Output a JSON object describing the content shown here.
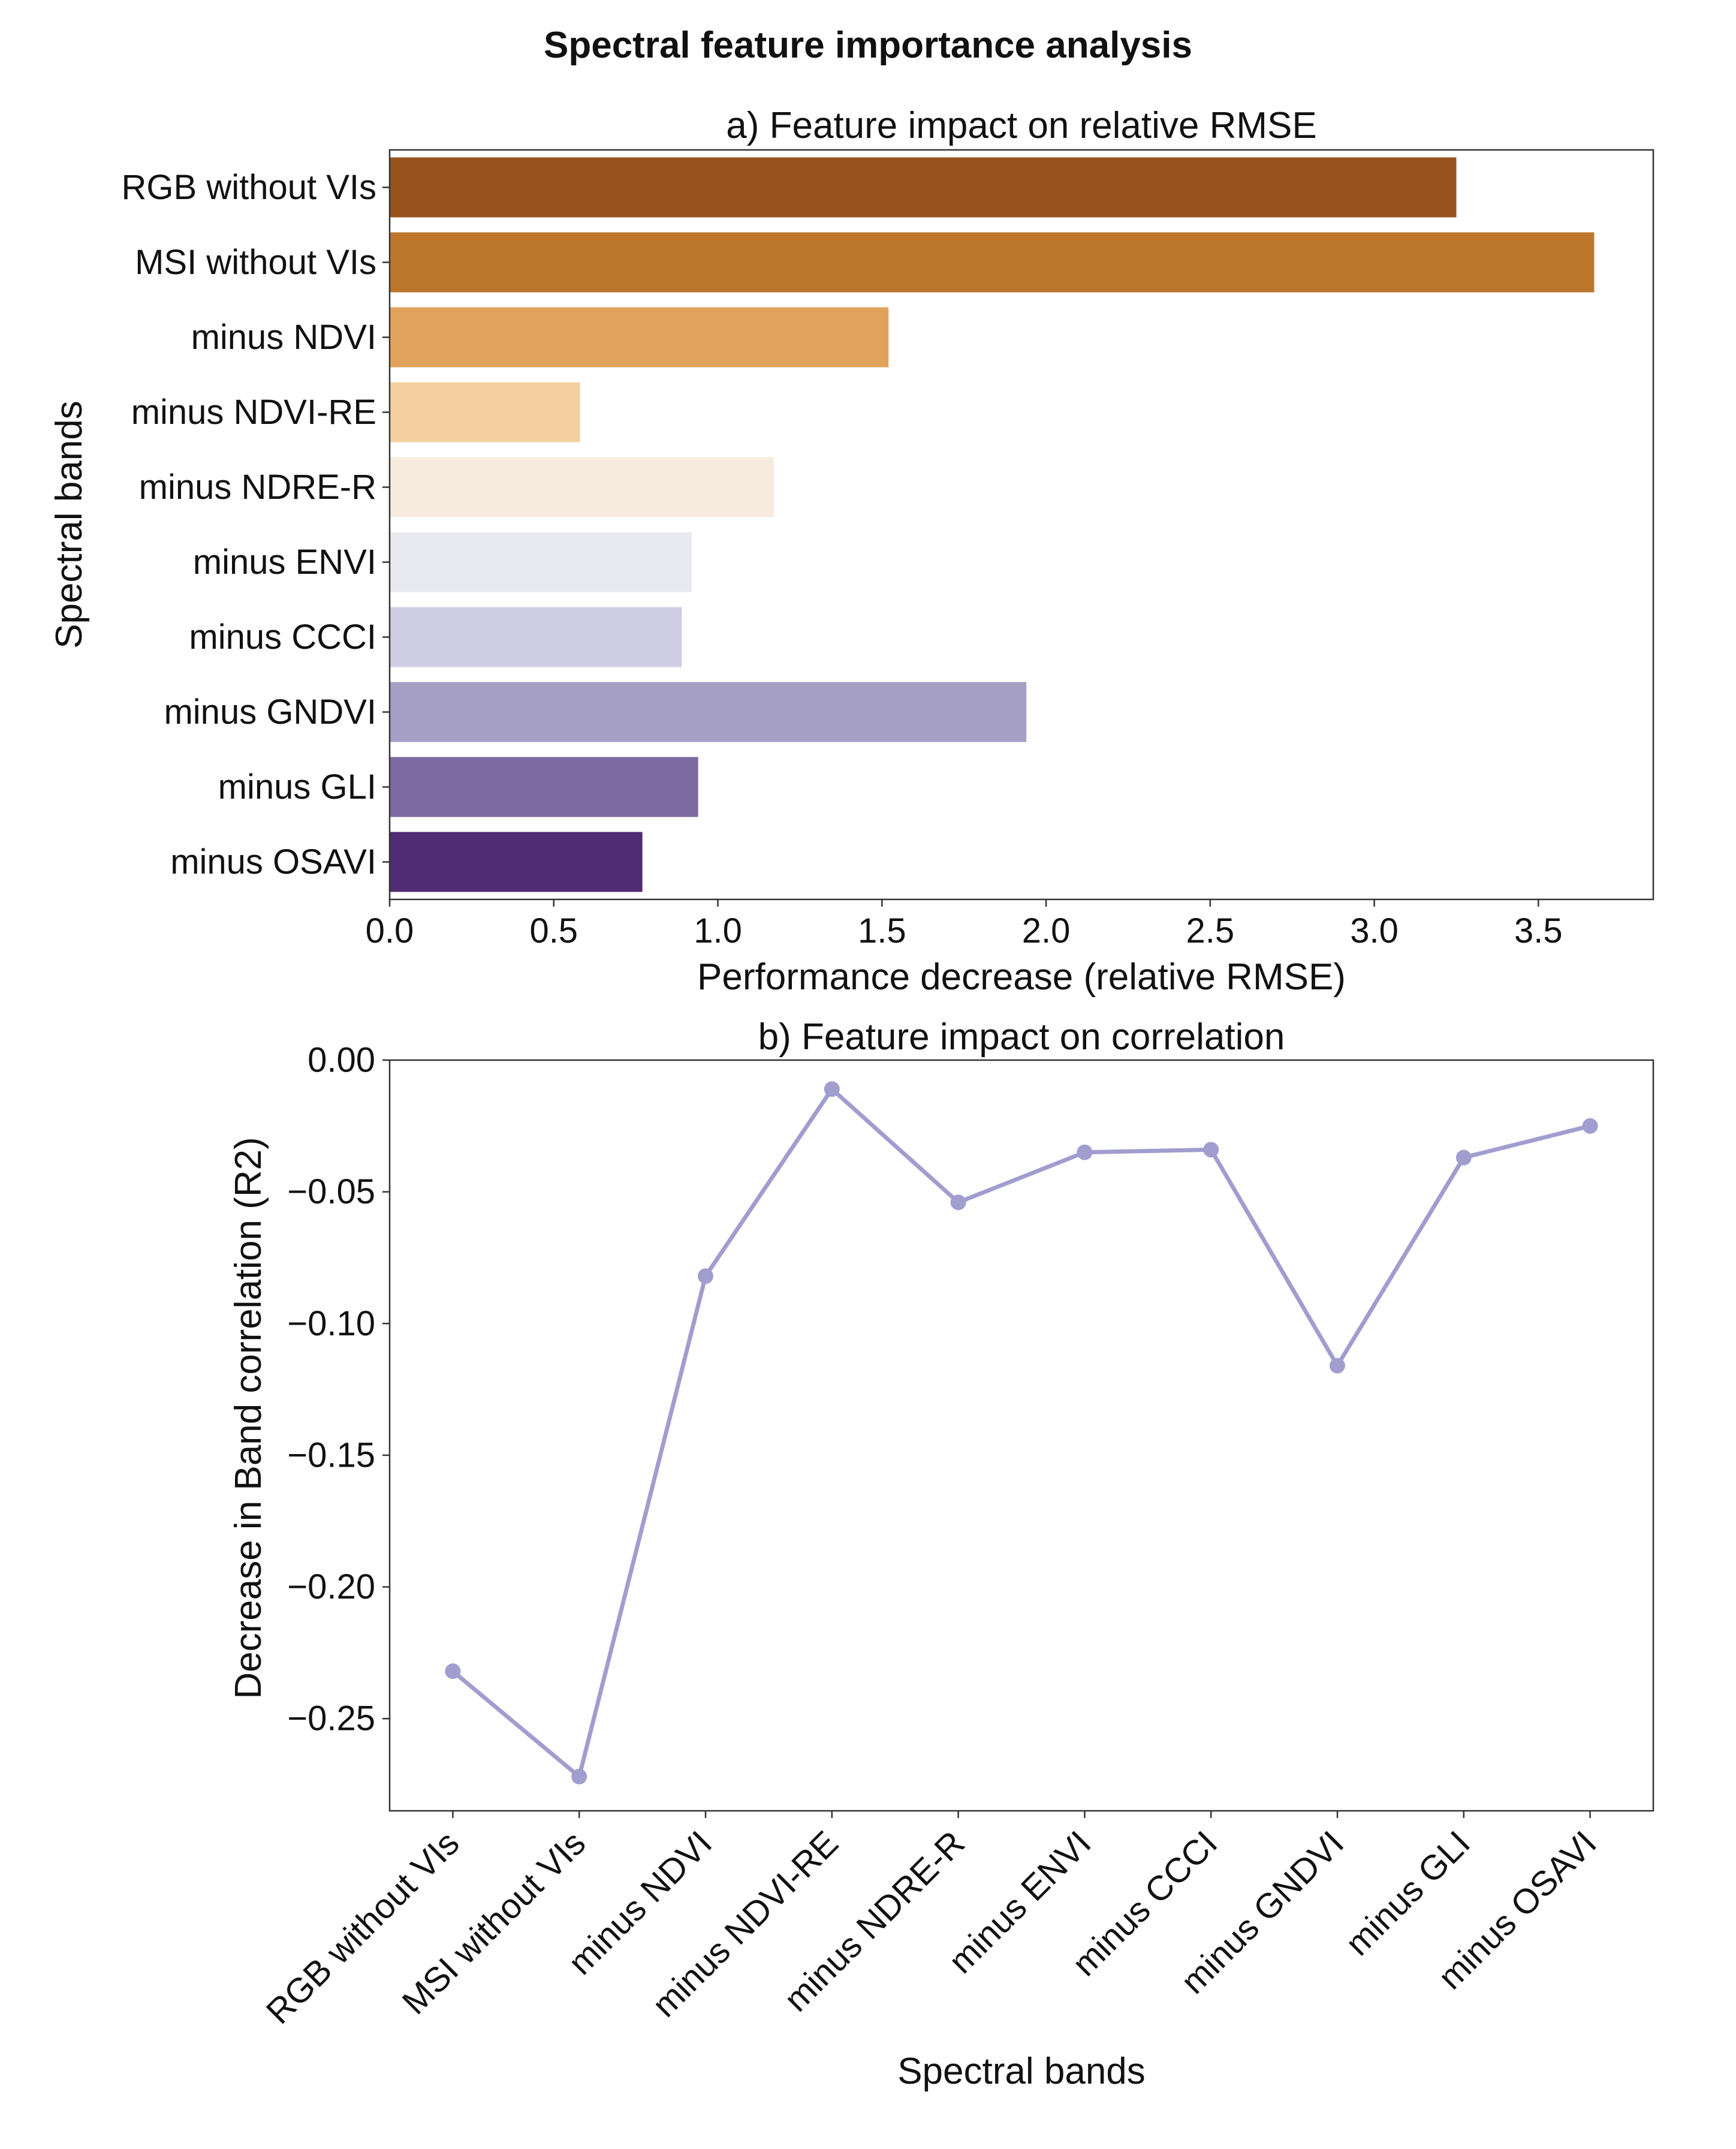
{
  "figure_title": "Spectral feature importance analysis",
  "chart_data": [
    {
      "type": "bar",
      "orientation": "horizontal",
      "title": "a) Feature impact on relative RMSE",
      "xlabel": "Performance decrease (relative RMSE)",
      "ylabel": "Spectral bands",
      "categories": [
        "RGB without VIs",
        "MSI without VIs",
        "minus NDVI",
        "minus NDVI-RE",
        "minus NDRE-R",
        "minus ENVI",
        "minus CCCI",
        "minus GNDVI",
        "minus GLI",
        "minus OSAVI"
      ],
      "values": [
        3.25,
        3.67,
        1.52,
        0.58,
        1.17,
        0.92,
        0.89,
        1.94,
        0.94,
        0.77
      ],
      "colors": [
        "#97531c",
        "#bc772c",
        "#e1a35c",
        "#f3cfa0",
        "#f6ebde",
        "#e9eaf0",
        "#cfcde3",
        "#a69fc5",
        "#7c6aa0",
        "#512b74"
      ],
      "xlim": [
        0,
        3.85
      ],
      "xticks": [
        0.0,
        0.5,
        1.0,
        1.5,
        2.0,
        2.5,
        3.0,
        3.5
      ],
      "xtick_labels": [
        "0.0",
        "0.5",
        "1.0",
        "1.5",
        "2.0",
        "2.5",
        "3.0",
        "3.5"
      ],
      "grid": false
    },
    {
      "type": "line",
      "title": "b) Feature impact on correlation",
      "xlabel": "Spectral bands",
      "ylabel": "Decrease in Band correlation (R2)",
      "categories": [
        "RGB without VIs",
        "MSI without VIs",
        "minus NDVI",
        "minus NDVI-RE",
        "minus NDRE-R",
        "minus ENVI",
        "minus CCCI",
        "minus GNDVI",
        "minus GLI",
        "minus OSAVI"
      ],
      "values": [
        -0.232,
        -0.272,
        -0.082,
        -0.011,
        -0.054,
        -0.035,
        -0.034,
        -0.116,
        -0.037,
        -0.025
      ],
      "color": "#a29dcf",
      "ylim": [
        -0.285,
        0.0
      ],
      "yticks": [
        0.0,
        -0.05,
        -0.1,
        -0.15,
        -0.2,
        -0.25
      ],
      "ytick_labels": [
        "0.00",
        "−0.05",
        "−0.10",
        "−0.15",
        "−0.20",
        "−0.25"
      ],
      "xtick_rotation": "45",
      "grid": false
    }
  ]
}
